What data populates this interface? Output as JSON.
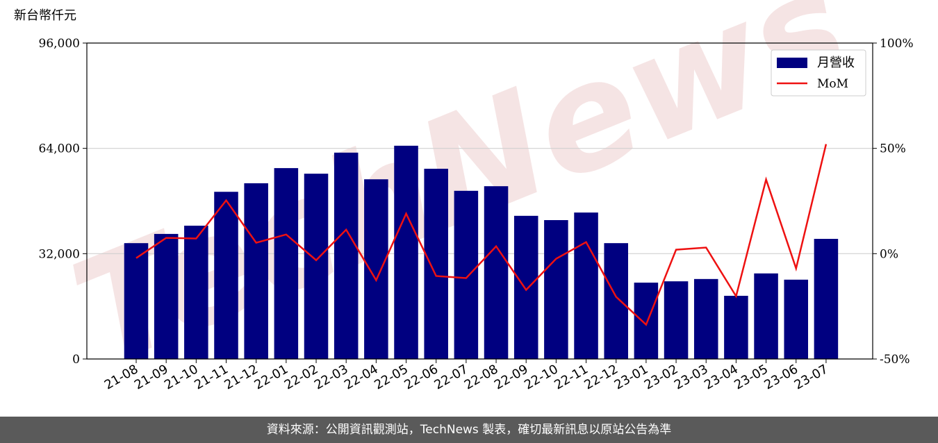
{
  "chart_data": {
    "type": "bar",
    "y_label": "新台幣仟元",
    "watermark": "TechNews",
    "source": "資料來源：公開資訊觀測站，TechNews 製表，確切最新訊息以原站公告為準",
    "categories": [
      "21-08",
      "21-09",
      "21-10",
      "21-11",
      "21-12",
      "22-01",
      "22-02",
      "22-03",
      "22-04",
      "22-05",
      "22-06",
      "22-07",
      "22-08",
      "22-09",
      "22-10",
      "22-11",
      "22-12",
      "23-01",
      "23-02",
      "23-03",
      "23-04",
      "23-05",
      "23-06",
      "23-07"
    ],
    "series": [
      {
        "name": "月營收",
        "type": "bar",
        "color": "#000080",
        "values": [
          35200,
          38000,
          40500,
          50800,
          53400,
          58000,
          56300,
          62700,
          54600,
          64800,
          57800,
          51100,
          52500,
          43500,
          42200,
          44500,
          35200,
          23200,
          23600,
          24300,
          19200,
          26000,
          24100,
          36500
        ]
      },
      {
        "name": "MoM",
        "type": "line",
        "axis": "y2",
        "color": "#ee1111",
        "values": [
          -2.1,
          7.5,
          7.2,
          25.3,
          5.2,
          9.1,
          -3.1,
          11.4,
          -12.6,
          19.0,
          -10.6,
          -11.6,
          3.5,
          -17.2,
          -2.4,
          5.5,
          -20.5,
          -33.7,
          1.9,
          2.9,
          -20.2,
          35.2,
          -7.0,
          52.0
        ]
      }
    ],
    "ylim": [
      0,
      96000
    ],
    "yticks": [
      0,
      {
        "value": 32000,
        "label": "32,000"
      },
      {
        "value": 64000,
        "label": "64,000"
      },
      {
        "value": 96000,
        "label": "96,000"
      }
    ],
    "y2lim": [
      -50,
      100
    ],
    "y2ticks": [
      {
        "value": -50,
        "label": "-50%"
      },
      {
        "value": 0,
        "label": "0%"
      },
      {
        "value": 50,
        "label": "50%"
      },
      {
        "value": 100,
        "label": "100%"
      }
    ],
    "grid": true,
    "legend": "upper right"
  }
}
